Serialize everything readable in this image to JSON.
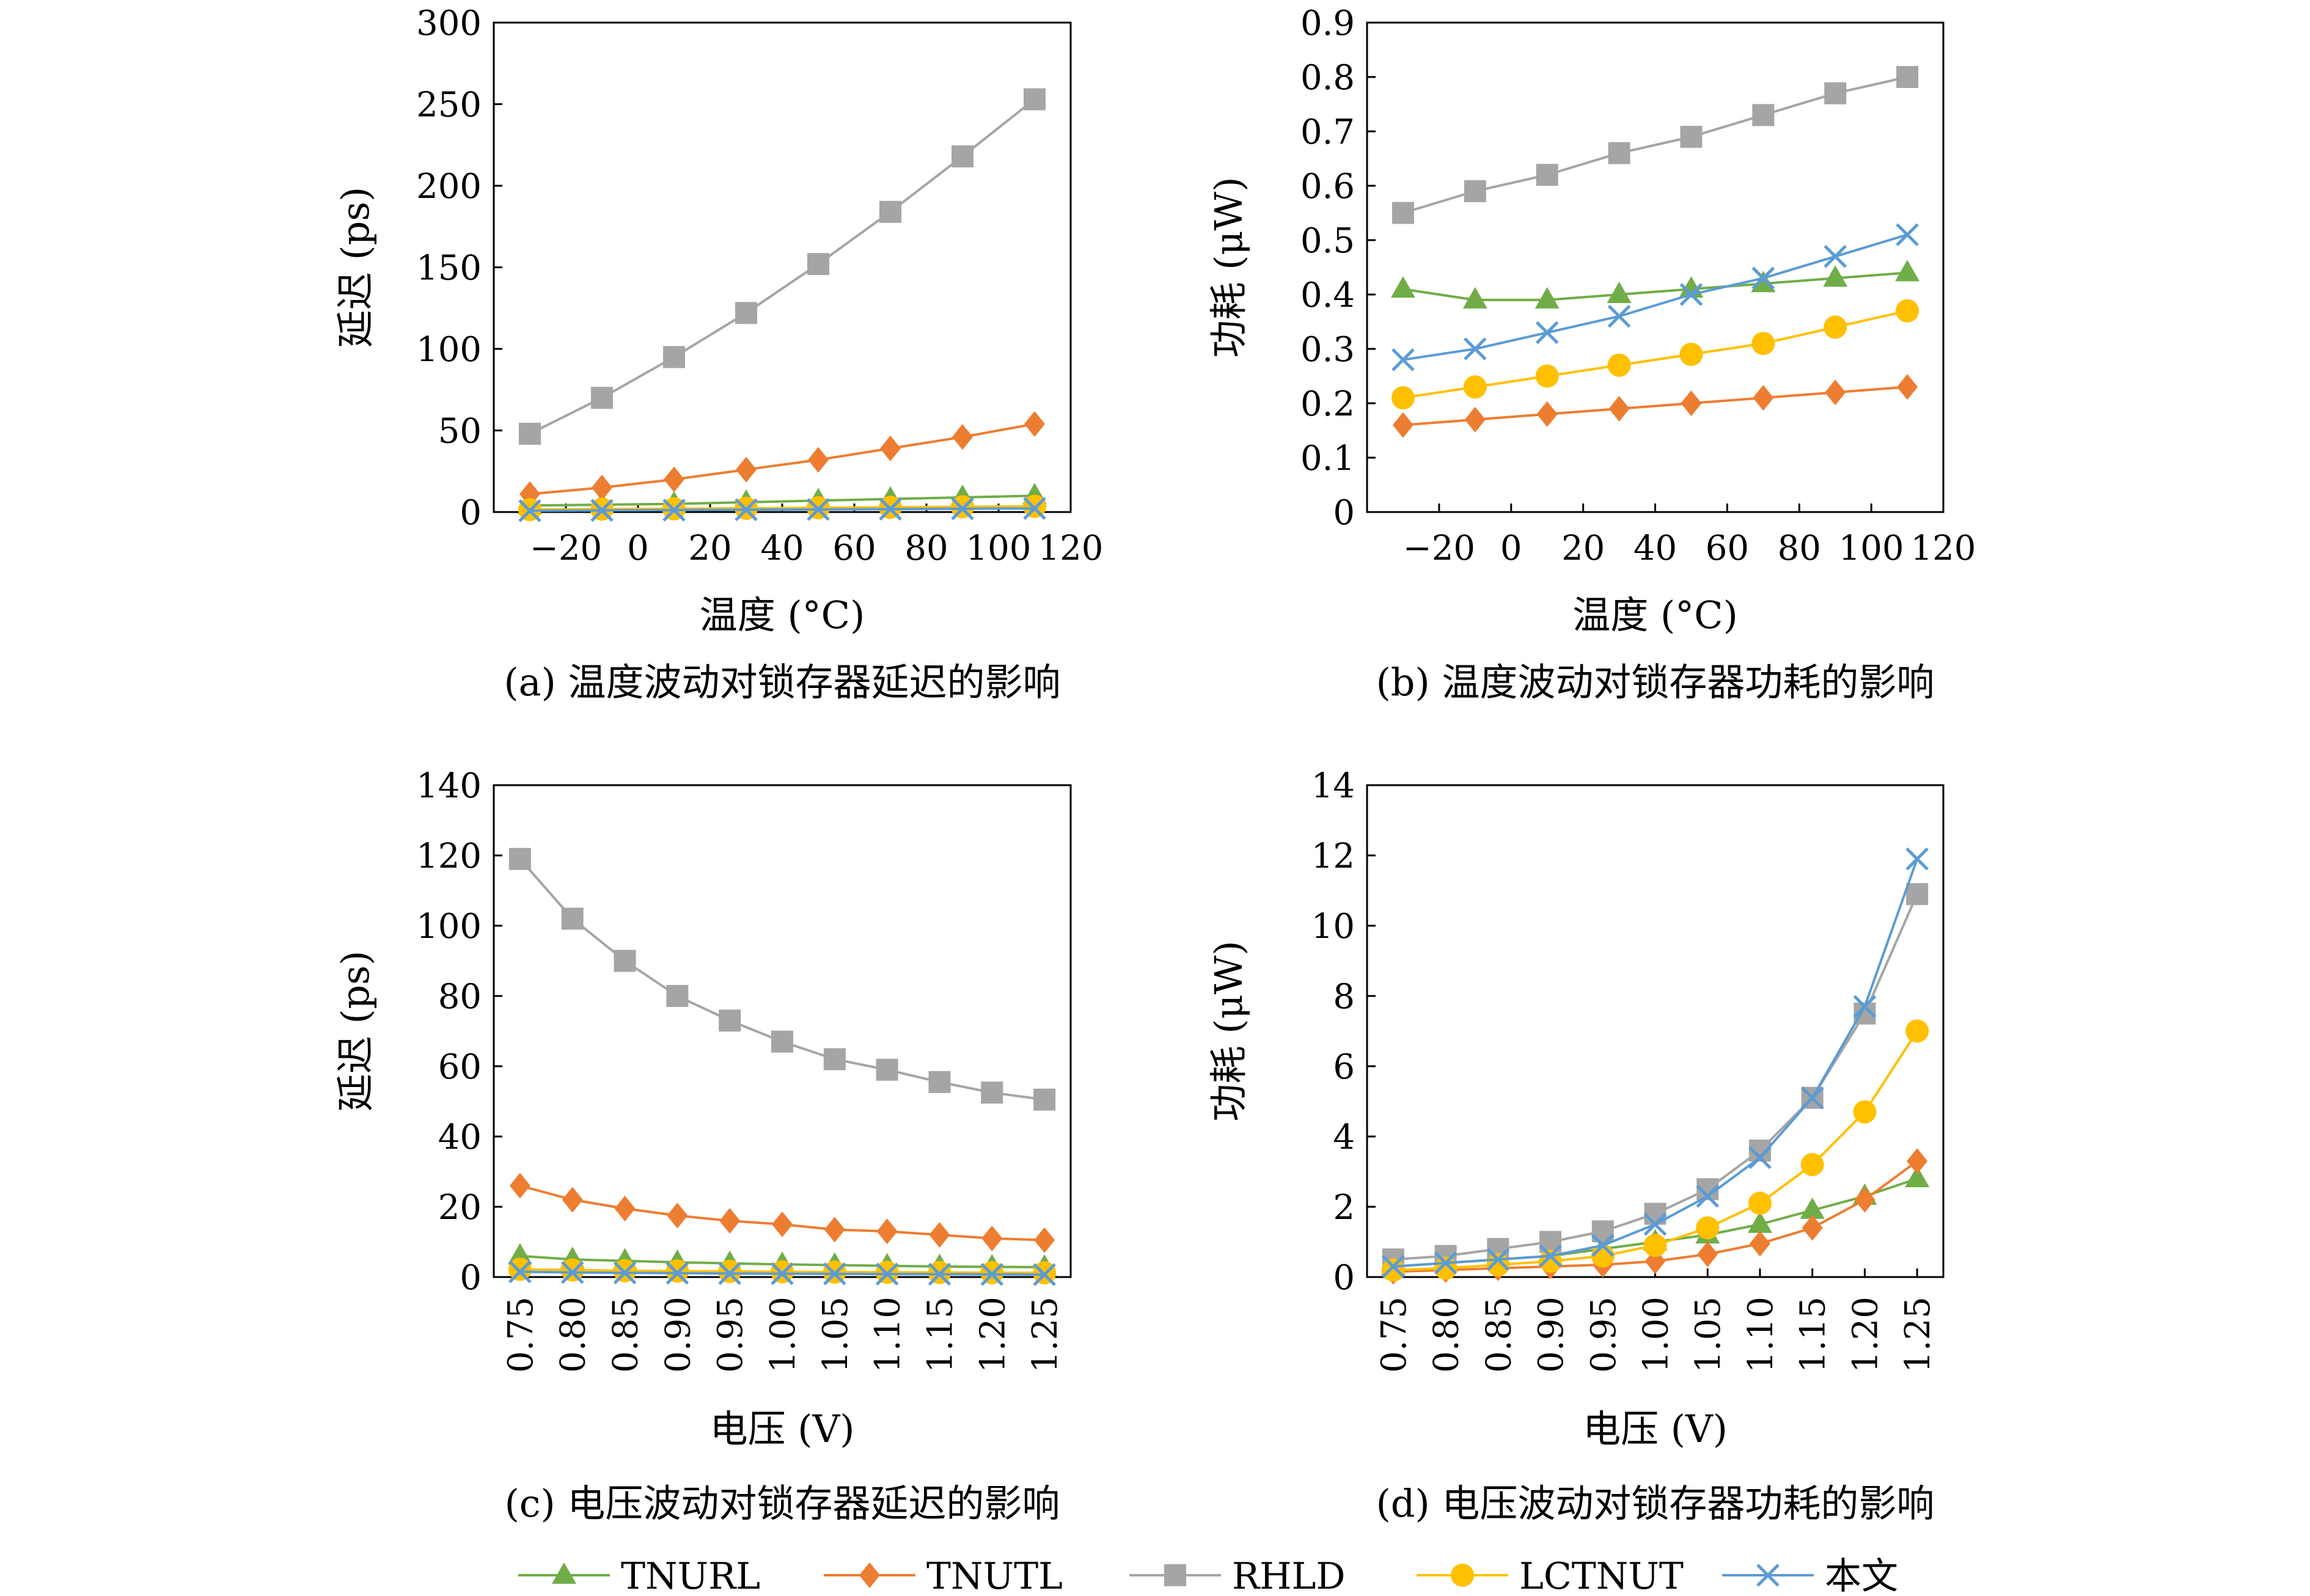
{
  "figure": {
    "legend": [
      {
        "name": "TNURL",
        "color": "#70ad47",
        "marker": "triangle"
      },
      {
        "name": "TNUTL",
        "color": "#ed7d31",
        "marker": "diamond"
      },
      {
        "name": "RHLD",
        "color": "#a5a5a5",
        "marker": "square"
      },
      {
        "name": "LCTNUT",
        "color": "#ffc000",
        "marker": "circle"
      },
      {
        "name": "本文",
        "color": "#5b9bd5",
        "marker": "x"
      }
    ]
  },
  "chart_data": [
    {
      "id": "a",
      "type": "line",
      "caption": "(a) 温度波动对锁存器延迟的影响",
      "xlabel": "温度 (°C)",
      "ylabel": "延迟 (ps)",
      "x": [
        -30,
        -10,
        10,
        30,
        50,
        70,
        90,
        110
      ],
      "xlim": [
        -40,
        120
      ],
      "xticks": [
        -20,
        0,
        20,
        40,
        60,
        80,
        100,
        120
      ],
      "xtick_labels": [
        "−20",
        "0",
        "20",
        "40",
        "60",
        "80",
        "100",
        "120"
      ],
      "ylim": [
        0,
        300
      ],
      "yticks": [
        0,
        50,
        100,
        150,
        200,
        250,
        300
      ],
      "ytick_labels": [
        "0",
        "50",
        "100",
        "150",
        "200",
        "250",
        "300"
      ],
      "series": [
        {
          "name": "TNURL",
          "values": [
            4,
            4.5,
            5,
            6,
            7,
            8,
            9,
            10
          ]
        },
        {
          "name": "TNUTL",
          "values": [
            11,
            15,
            20,
            26,
            32,
            39,
            46,
            54
          ]
        },
        {
          "name": "RHLD",
          "values": [
            48,
            70,
            95,
            122,
            152,
            184,
            218,
            253
          ]
        },
        {
          "name": "LCTNUT",
          "values": [
            1.5,
            1.8,
            2.0,
            2.3,
            2.6,
            2.9,
            3.2,
            3.5
          ]
        },
        {
          "name": "本文",
          "values": [
            0.8,
            1.0,
            1.2,
            1.4,
            1.6,
            1.8,
            2.0,
            2.2
          ]
        }
      ]
    },
    {
      "id": "b",
      "type": "line",
      "caption": "(b) 温度波动对锁存器功耗的影响",
      "xlabel": "温度 (°C)",
      "ylabel": "功耗 (μW)",
      "x": [
        -30,
        -10,
        10,
        30,
        50,
        70,
        90,
        110
      ],
      "xlim": [
        -40,
        120
      ],
      "xticks": [
        -20,
        0,
        20,
        40,
        60,
        80,
        100,
        120
      ],
      "xtick_labels": [
        "−20",
        "0",
        "20",
        "40",
        "60",
        "80",
        "100",
        "120"
      ],
      "ylim": [
        0,
        0.9
      ],
      "yticks": [
        0,
        0.1,
        0.2,
        0.3,
        0.4,
        0.5,
        0.6,
        0.7,
        0.8,
        0.9
      ],
      "ytick_labels": [
        "0",
        "0.1",
        "0.2",
        "0.3",
        "0.4",
        "0.5",
        "0.6",
        "0.7",
        "0.8",
        "0.9"
      ],
      "series": [
        {
          "name": "TNURL",
          "values": [
            0.41,
            0.39,
            0.39,
            0.4,
            0.41,
            0.42,
            0.43,
            0.44
          ]
        },
        {
          "name": "TNUTL",
          "values": [
            0.16,
            0.17,
            0.18,
            0.19,
            0.2,
            0.21,
            0.22,
            0.23
          ]
        },
        {
          "name": "RHLD",
          "values": [
            0.55,
            0.59,
            0.62,
            0.66,
            0.69,
            0.73,
            0.77,
            0.8
          ]
        },
        {
          "name": "LCTNUT",
          "values": [
            0.21,
            0.23,
            0.25,
            0.27,
            0.29,
            0.31,
            0.34,
            0.37
          ]
        },
        {
          "name": "本文",
          "values": [
            0.28,
            0.3,
            0.33,
            0.36,
            0.4,
            0.43,
            0.47,
            0.51
          ]
        }
      ]
    },
    {
      "id": "c",
      "type": "line",
      "caption": "(c) 电压波动对锁存器延迟的影响",
      "xlabel": "电压 (V)",
      "ylabel": "延迟 (ps)",
      "categories": [
        "0.75",
        "0.80",
        "0.85",
        "0.90",
        "0.95",
        "1.00",
        "1.05",
        "1.10",
        "1.15",
        "1.20",
        "1.25"
      ],
      "ylim": [
        0,
        140
      ],
      "yticks": [
        0,
        20,
        40,
        60,
        80,
        100,
        120,
        140
      ],
      "ytick_labels": [
        "0",
        "20",
        "40",
        "60",
        "80",
        "100",
        "120",
        "140"
      ],
      "series": [
        {
          "name": "TNURL",
          "values": [
            6,
            5,
            4.6,
            4.2,
            3.9,
            3.6,
            3.4,
            3.2,
            3.0,
            2.9,
            2.8
          ]
        },
        {
          "name": "TNUTL",
          "values": [
            26,
            22,
            19.5,
            17.5,
            16,
            15,
            13.5,
            13,
            12,
            11,
            10.5
          ]
        },
        {
          "name": "RHLD",
          "values": [
            119,
            102,
            90,
            80,
            73,
            67,
            62,
            59,
            55.5,
            52.5,
            50.5
          ]
        },
        {
          "name": "LCTNUT",
          "values": [
            2.2,
            2.0,
            1.8,
            1.7,
            1.6,
            1.5,
            1.4,
            1.35,
            1.3,
            1.25,
            1.2
          ]
        },
        {
          "name": "本文",
          "values": [
            1.5,
            1.3,
            1.2,
            1.1,
            1.0,
            0.95,
            0.9,
            0.85,
            0.8,
            0.75,
            0.7
          ]
        }
      ]
    },
    {
      "id": "d",
      "type": "line",
      "caption": "(d) 电压波动对锁存器功耗的影响",
      "xlabel": "电压 (V)",
      "ylabel": "功耗 (μW)",
      "categories": [
        "0.75",
        "0.80",
        "0.85",
        "0.90",
        "0.95",
        "1.00",
        "1.05",
        "1.10",
        "1.15",
        "1.20",
        "1.25"
      ],
      "ylim": [
        0,
        14
      ],
      "yticks": [
        0,
        2,
        4,
        6,
        8,
        10,
        12,
        14
      ],
      "ytick_labels": [
        "0",
        "2",
        "4",
        "6",
        "8",
        "10",
        "12",
        "14"
      ],
      "series": [
        {
          "name": "TNURL",
          "values": [
            0.3,
            0.4,
            0.5,
            0.6,
            0.8,
            1.0,
            1.2,
            1.5,
            1.9,
            2.3,
            2.8
          ]
        },
        {
          "name": "TNUTL",
          "values": [
            0.15,
            0.2,
            0.25,
            0.3,
            0.35,
            0.45,
            0.65,
            0.95,
            1.4,
            2.2,
            3.3
          ]
        },
        {
          "name": "RHLD",
          "values": [
            0.5,
            0.6,
            0.8,
            1.0,
            1.3,
            1.8,
            2.5,
            3.6,
            5.1,
            7.5,
            10.9
          ]
        },
        {
          "name": "LCTNUT",
          "values": [
            0.2,
            0.25,
            0.35,
            0.45,
            0.6,
            0.9,
            1.4,
            2.1,
            3.2,
            4.7,
            7.0
          ]
        },
        {
          "name": "本文",
          "values": [
            0.3,
            0.4,
            0.5,
            0.6,
            0.9,
            1.5,
            2.3,
            3.4,
            5.1,
            7.7,
            11.9
          ]
        }
      ]
    }
  ]
}
